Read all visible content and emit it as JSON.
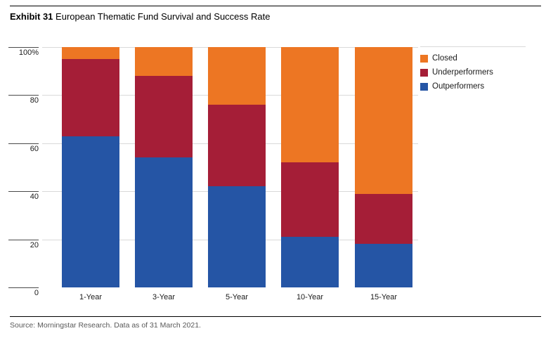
{
  "title": {
    "prefix": "Exhibit 31",
    "text": "European Thematic Fund Survival and Success Rate"
  },
  "source": "Source: Morningstar Research. Data as of 31 March 2021.",
  "colors": {
    "closed": "#ED7623",
    "underperformers": "#A51E37",
    "outperformers": "#2555A5",
    "gridline": "#D9D9D9"
  },
  "legend": [
    {
      "label": "Closed",
      "color": "#ED7623"
    },
    {
      "label": "Underperformers",
      "color": "#A51E37"
    },
    {
      "label": "Outperformers",
      "color": "#2555A5"
    }
  ],
  "chart_data": {
    "type": "bar",
    "stacked": true,
    "title": "European Thematic Fund Survival and Success Rate",
    "xlabel": "",
    "ylabel": "",
    "ylim": [
      0,
      100
    ],
    "grid": true,
    "legend_position": "top-right",
    "categories": [
      "1-Year",
      "3-Year",
      "5-Year",
      "10-Year",
      "15-Year"
    ],
    "series": [
      {
        "name": "Outperformers",
        "color": "#2555A5",
        "values": [
          63,
          54,
          42,
          21,
          18
        ]
      },
      {
        "name": "Underperformers",
        "color": "#A51E37",
        "values": [
          32,
          34,
          34,
          31,
          21
        ]
      },
      {
        "name": "Closed",
        "color": "#ED7623",
        "values": [
          5,
          12,
          24,
          48,
          61
        ]
      }
    ],
    "y_ticks": [
      {
        "label": "100%",
        "value": 100
      },
      {
        "label": "80",
        "value": 80
      },
      {
        "label": "60",
        "value": 60
      },
      {
        "label": "40",
        "value": 40
      },
      {
        "label": "20",
        "value": 20
      },
      {
        "label": "0",
        "value": 0
      }
    ]
  }
}
